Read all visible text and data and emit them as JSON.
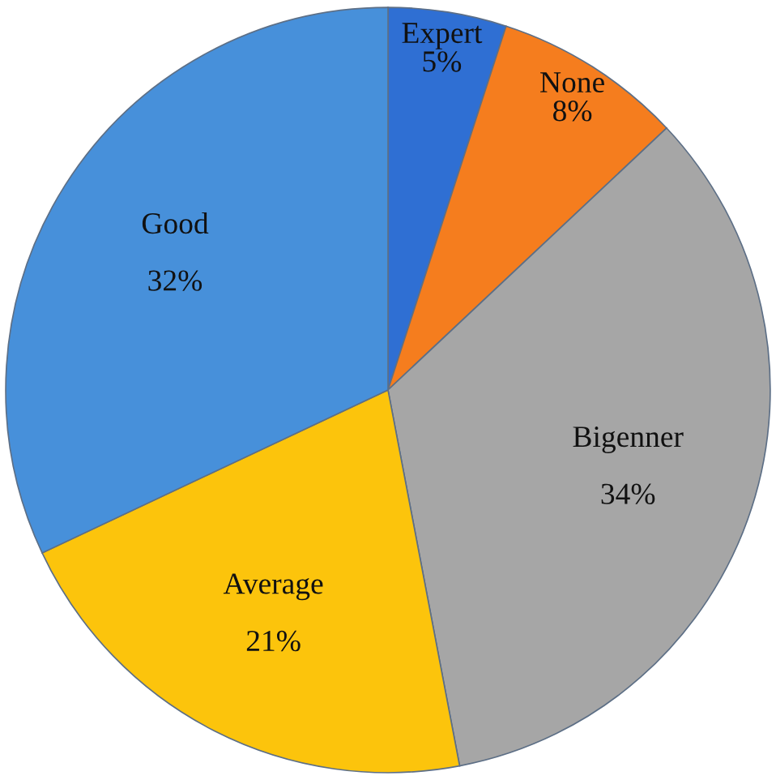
{
  "chart_data": {
    "type": "pie",
    "categories": [
      "Expert",
      "None",
      "Bigenner",
      "Average",
      "Good"
    ],
    "values": [
      5,
      8,
      34,
      21,
      32
    ],
    "value_labels": [
      "5%",
      "8%",
      "34%",
      "21%",
      "32%"
    ],
    "colors": [
      "#2f6fd3",
      "#f57d1e",
      "#a6a6a6",
      "#fcc40c",
      "#4790da"
    ],
    "legend": false
  }
}
